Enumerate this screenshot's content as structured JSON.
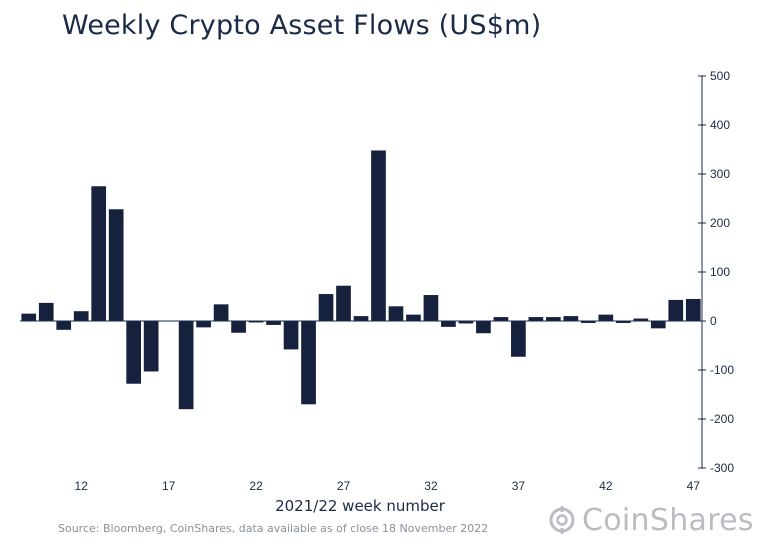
{
  "title": "Weekly Crypto Asset Flows (US$m)",
  "source": "Source: Bloomberg, CoinShares, data available as of close 18 November 2022",
  "brand": "CoinShares",
  "colors": {
    "bar": "#16213e",
    "axis": "#1b2a47",
    "text": "#1b2a47",
    "brand": "#b9bcc2"
  },
  "chart_data": {
    "type": "bar",
    "xlabel": "2021/22 week number",
    "ylabel": "",
    "ylim": [
      -300,
      500
    ],
    "yticks": [
      500,
      400,
      300,
      200,
      100,
      0,
      -100,
      -200,
      -300
    ],
    "ytick_labels": [
      "500",
      "400",
      "300",
      "200",
      "100",
      "0",
      "-100",
      "-200",
      "-300"
    ],
    "y_axis_position": "right",
    "grid": false,
    "x": [
      9,
      10,
      11,
      12,
      13,
      14,
      15,
      16,
      17,
      18,
      19,
      20,
      21,
      22,
      23,
      24,
      25,
      26,
      27,
      28,
      29,
      30,
      31,
      32,
      33,
      34,
      35,
      36,
      37,
      38,
      39,
      40,
      41,
      42,
      43,
      44,
      45,
      46,
      47
    ],
    "xtick_labels": [
      "12",
      "17",
      "22",
      "27",
      "32",
      "37",
      "42",
      "47"
    ],
    "xtick_values": [
      12,
      17,
      22,
      27,
      32,
      37,
      42,
      47
    ],
    "values": [
      15,
      37,
      -18,
      20,
      275,
      228,
      -128,
      -103,
      0,
      -180,
      -13,
      34,
      -24,
      -3,
      -8,
      -58,
      -170,
      55,
      72,
      10,
      348,
      30,
      13,
      53,
      -12,
      -5,
      -25,
      8,
      -73,
      8,
      8,
      10,
      -4,
      13,
      -4,
      5,
      -15,
      43,
      45
    ]
  }
}
